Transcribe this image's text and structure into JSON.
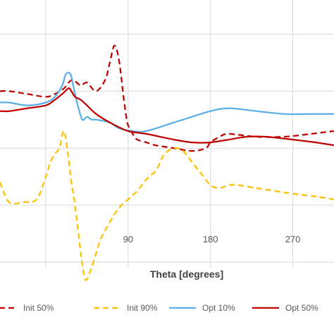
{
  "chart_data": {
    "type": "line",
    "xlabel": "Theta [degrees]",
    "ylabel": "",
    "xlim": [
      -50,
      315
    ],
    "ylim": [
      -1.1,
      3.6
    ],
    "x_ticks": [
      90,
      180,
      270
    ],
    "x_tick_labels": [
      "90",
      "180",
      "270"
    ],
    "y_gridlines": [
      -1.0,
      0.0,
      1.0,
      2.0,
      3.0
    ],
    "grid": true,
    "legend_position": "bottom",
    "series": [
      {
        "name": "Init 50%",
        "color": "#C00000",
        "dash": "dashed",
        "x": [
          -50,
          -40,
          -20,
          0,
          10,
          20,
          25,
          30,
          38,
          45,
          55,
          65,
          70,
          75,
          80,
          85,
          88,
          90,
          95,
          100,
          110,
          120,
          140,
          160,
          175,
          180,
          190,
          200,
          230,
          260,
          290,
          315
        ],
        "y": [
          2.0,
          2.0,
          1.95,
          1.9,
          1.95,
          2.05,
          2.15,
          2.2,
          2.1,
          2.15,
          2.0,
          2.2,
          2.5,
          2.8,
          2.55,
          1.9,
          1.55,
          1.4,
          1.25,
          1.15,
          1.1,
          1.05,
          1.0,
          0.95,
          1.0,
          1.1,
          1.2,
          1.25,
          1.2,
          1.2,
          1.25,
          1.3
        ]
      },
      {
        "name": "Init 90%",
        "color": "#FFC000",
        "dash": "dashed",
        "x": [
          -50,
          -40,
          -25,
          -10,
          0,
          5,
          10,
          15,
          20,
          25,
          28,
          32,
          38,
          42,
          45,
          50,
          55,
          60,
          70,
          80,
          90,
          100,
          110,
          120,
          125,
          130,
          140,
          150,
          160,
          170,
          180,
          190,
          200,
          210,
          230,
          250,
          270,
          295,
          315
        ],
        "y": [
          0.4,
          0.05,
          0.05,
          0.1,
          0.5,
          0.75,
          0.9,
          1.0,
          1.3,
          0.8,
          0.4,
          0.0,
          -0.8,
          -1.25,
          -1.3,
          -1.1,
          -0.85,
          -0.6,
          -0.3,
          -0.05,
          0.1,
          0.25,
          0.45,
          0.6,
          0.75,
          0.9,
          1.0,
          0.95,
          0.75,
          0.55,
          0.35,
          0.3,
          0.35,
          0.35,
          0.3,
          0.25,
          0.2,
          0.15,
          0.1
        ]
      },
      {
        "name": "Opt 10%",
        "color": "#5BAEE6",
        "dash": "solid",
        "x": [
          -50,
          -40,
          -20,
          0,
          10,
          18,
          22,
          27,
          30,
          35,
          40,
          45,
          50,
          55,
          70,
          80,
          95,
          110,
          140,
          160,
          180,
          200,
          230,
          260,
          290,
          315
        ],
        "y": [
          1.8,
          1.8,
          1.75,
          1.8,
          1.9,
          2.1,
          2.3,
          2.3,
          2.1,
          1.75,
          1.5,
          1.55,
          1.5,
          1.5,
          1.45,
          1.35,
          1.3,
          1.3,
          1.45,
          1.55,
          1.65,
          1.7,
          1.65,
          1.6,
          1.6,
          1.6
        ]
      },
      {
        "name": "Opt 50%",
        "color": "#C00000",
        "dash": "solid",
        "x": [
          -50,
          -40,
          -20,
          0,
          10,
          18,
          25,
          28,
          32,
          38,
          45,
          55,
          70,
          90,
          110,
          140,
          160,
          180,
          200,
          220,
          240,
          270,
          295,
          315
        ],
        "y": [
          1.65,
          1.65,
          1.7,
          1.75,
          1.85,
          1.95,
          2.05,
          2.0,
          1.9,
          1.85,
          1.75,
          1.6,
          1.45,
          1.3,
          1.25,
          1.15,
          1.1,
          1.1,
          1.15,
          1.2,
          1.2,
          1.15,
          1.1,
          1.05
        ]
      }
    ]
  }
}
